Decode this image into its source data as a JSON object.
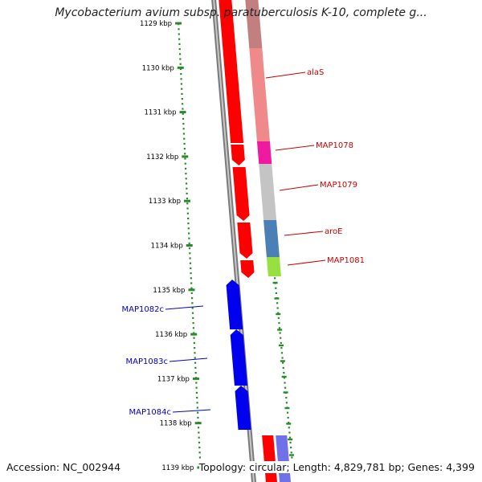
{
  "title": "Mycobacterium avium subsp. paratuberculosis K-10, complete g...",
  "accession": "Accession: NC_002944",
  "info": "Topology: circular; Length: 4,829,781 bp; Genes: 4,399",
  "colors": {
    "forward_cds": "#ff0000",
    "reverse_cds": "#0000ee",
    "ruler": "#2a8a2a",
    "backbone": "#7a7a7a",
    "forward_label": "#cc0000",
    "reverse_label": "#0000cc"
  },
  "ruler_labels": [
    "1129 kbp",
    "1130 kbp",
    "1131 kbp",
    "1132 kbp",
    "1133 kbp",
    "1134 kbp",
    "1135 kbp",
    "1136 kbp",
    "1137 kbp",
    "1138 kbp",
    "1139 kbp"
  ],
  "forward_genes": [
    {
      "name": "alaS",
      "color": "#f08a8a"
    },
    {
      "name": "MAP1078",
      "color": "#ee1aa0"
    },
    {
      "name": "MAP1079",
      "color": "#c4c4c4"
    },
    {
      "name": "aroE",
      "color": "#4a80b6"
    },
    {
      "name": "MAP1081",
      "color": "#96e040"
    }
  ],
  "reverse_genes": [
    {
      "name": "MAP1082c"
    },
    {
      "name": "MAP1083c"
    },
    {
      "name": "MAP1084c"
    }
  ]
}
